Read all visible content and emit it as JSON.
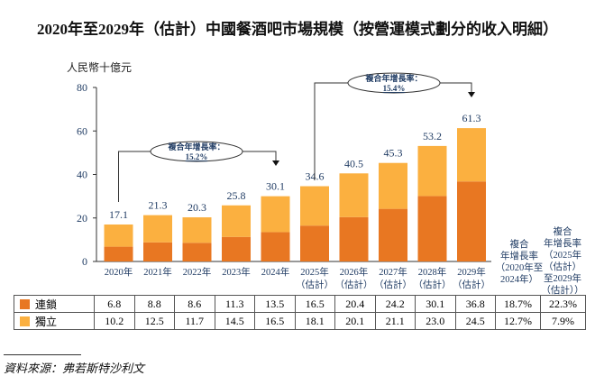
{
  "title": "2020年至2029年（估計）中國餐酒吧市場規模（按營運模式劃分的收入明細）",
  "unit": "人民幣十億元",
  "source": "資料來源：弗若斯特沙利文",
  "colors": {
    "chain": "#E87722",
    "independent": "#FBB040"
  },
  "chart_data": {
    "type": "bar",
    "stacked": true,
    "categories": [
      "2020年",
      "2021年",
      "2022年",
      "2023年",
      "2024年",
      "2025年\n(估計)",
      "2026年\n(估計)",
      "2027年\n(估計)",
      "2028年\n(估計)",
      "2029年\n(估計)"
    ],
    "category_lines": [
      [
        "2020年",
        ""
      ],
      [
        "2021年",
        ""
      ],
      [
        "2022年",
        ""
      ],
      [
        "2023年",
        ""
      ],
      [
        "2024年",
        ""
      ],
      [
        "2025年",
        "（估計）"
      ],
      [
        "2026年",
        "（估計）"
      ],
      [
        "2027年",
        "（估計）"
      ],
      [
        "2028年",
        "（估計）"
      ],
      [
        "2029年",
        "（估計）"
      ]
    ],
    "series": [
      {
        "name": "連鎖",
        "values": [
          6.8,
          8.8,
          8.6,
          11.3,
          13.5,
          16.5,
          20.4,
          24.2,
          30.1,
          36.8
        ],
        "cagr": [
          "18.7%",
          "22.3%"
        ]
      },
      {
        "name": "獨立",
        "values": [
          10.2,
          12.5,
          11.7,
          14.5,
          16.5,
          18.1,
          20.1,
          21.1,
          23.0,
          24.5
        ],
        "cagr": [
          "12.7%",
          "7.9%"
        ]
      }
    ],
    "totals": [
      "17.1",
      "21.3",
      "20.3",
      "25.8",
      "30.1",
      "34.6",
      "40.5",
      "45.3",
      "53.2",
      "61.3"
    ],
    "ylim": [
      0,
      80
    ],
    "yticks": [
      "0",
      "20",
      "40",
      "60",
      "80"
    ],
    "ylabel": "人民幣十億元",
    "annotations": [
      {
        "label": "複合年增長率：",
        "value": "15.2%",
        "from": "2020年",
        "to": "2024年"
      },
      {
        "label": "複合年增長率：",
        "value": "15.4%",
        "from": "2025年",
        "to": "2029年"
      }
    ],
    "cagr_headers": [
      [
        "複合",
        "年增長率",
        "（2020年至",
        "2024年）"
      ],
      [
        "複合",
        "年增長率",
        "（2025年",
        "（估計）",
        "至2029年",
        "（估計））"
      ]
    ]
  }
}
